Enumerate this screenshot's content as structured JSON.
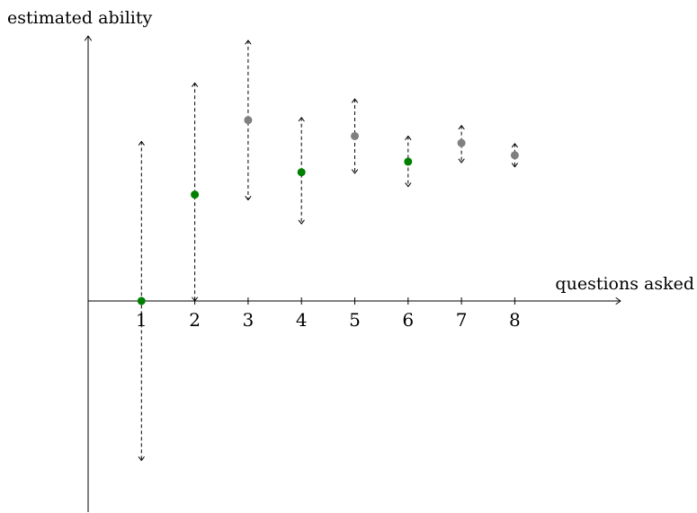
{
  "chart_data": {
    "type": "scatter",
    "title": "",
    "xlabel": "questions asked",
    "ylabel": "estimated ability",
    "x_ticks": [
      "1",
      "2",
      "3",
      "4",
      "5",
      "6",
      "7",
      "8"
    ],
    "xlim": [
      0,
      10
    ],
    "ylim": [
      -4,
      5
    ],
    "grid": false,
    "colors": {
      "green": "#008000",
      "gray": "#808080"
    },
    "points": [
      {
        "x": 1,
        "y": 0,
        "low": -3,
        "high": 3,
        "color": "green"
      },
      {
        "x": 2,
        "y": 2,
        "low": 0,
        "high": 4.1,
        "color": "green"
      },
      {
        "x": 3,
        "y": 3.4,
        "low": 1.9,
        "high": 4.9,
        "color": "gray"
      },
      {
        "x": 4,
        "y": 2.42,
        "low": 1.45,
        "high": 3.45,
        "color": "green"
      },
      {
        "x": 5,
        "y": 3.1,
        "low": 2.4,
        "high": 3.8,
        "color": "gray"
      },
      {
        "x": 6,
        "y": 2.62,
        "low": 2.15,
        "high": 3.1,
        "color": "green"
      },
      {
        "x": 7,
        "y": 2.97,
        "low": 2.6,
        "high": 3.3,
        "color": "gray"
      },
      {
        "x": 8,
        "y": 2.74,
        "low": 2.52,
        "high": 2.96,
        "color": "gray"
      }
    ]
  }
}
